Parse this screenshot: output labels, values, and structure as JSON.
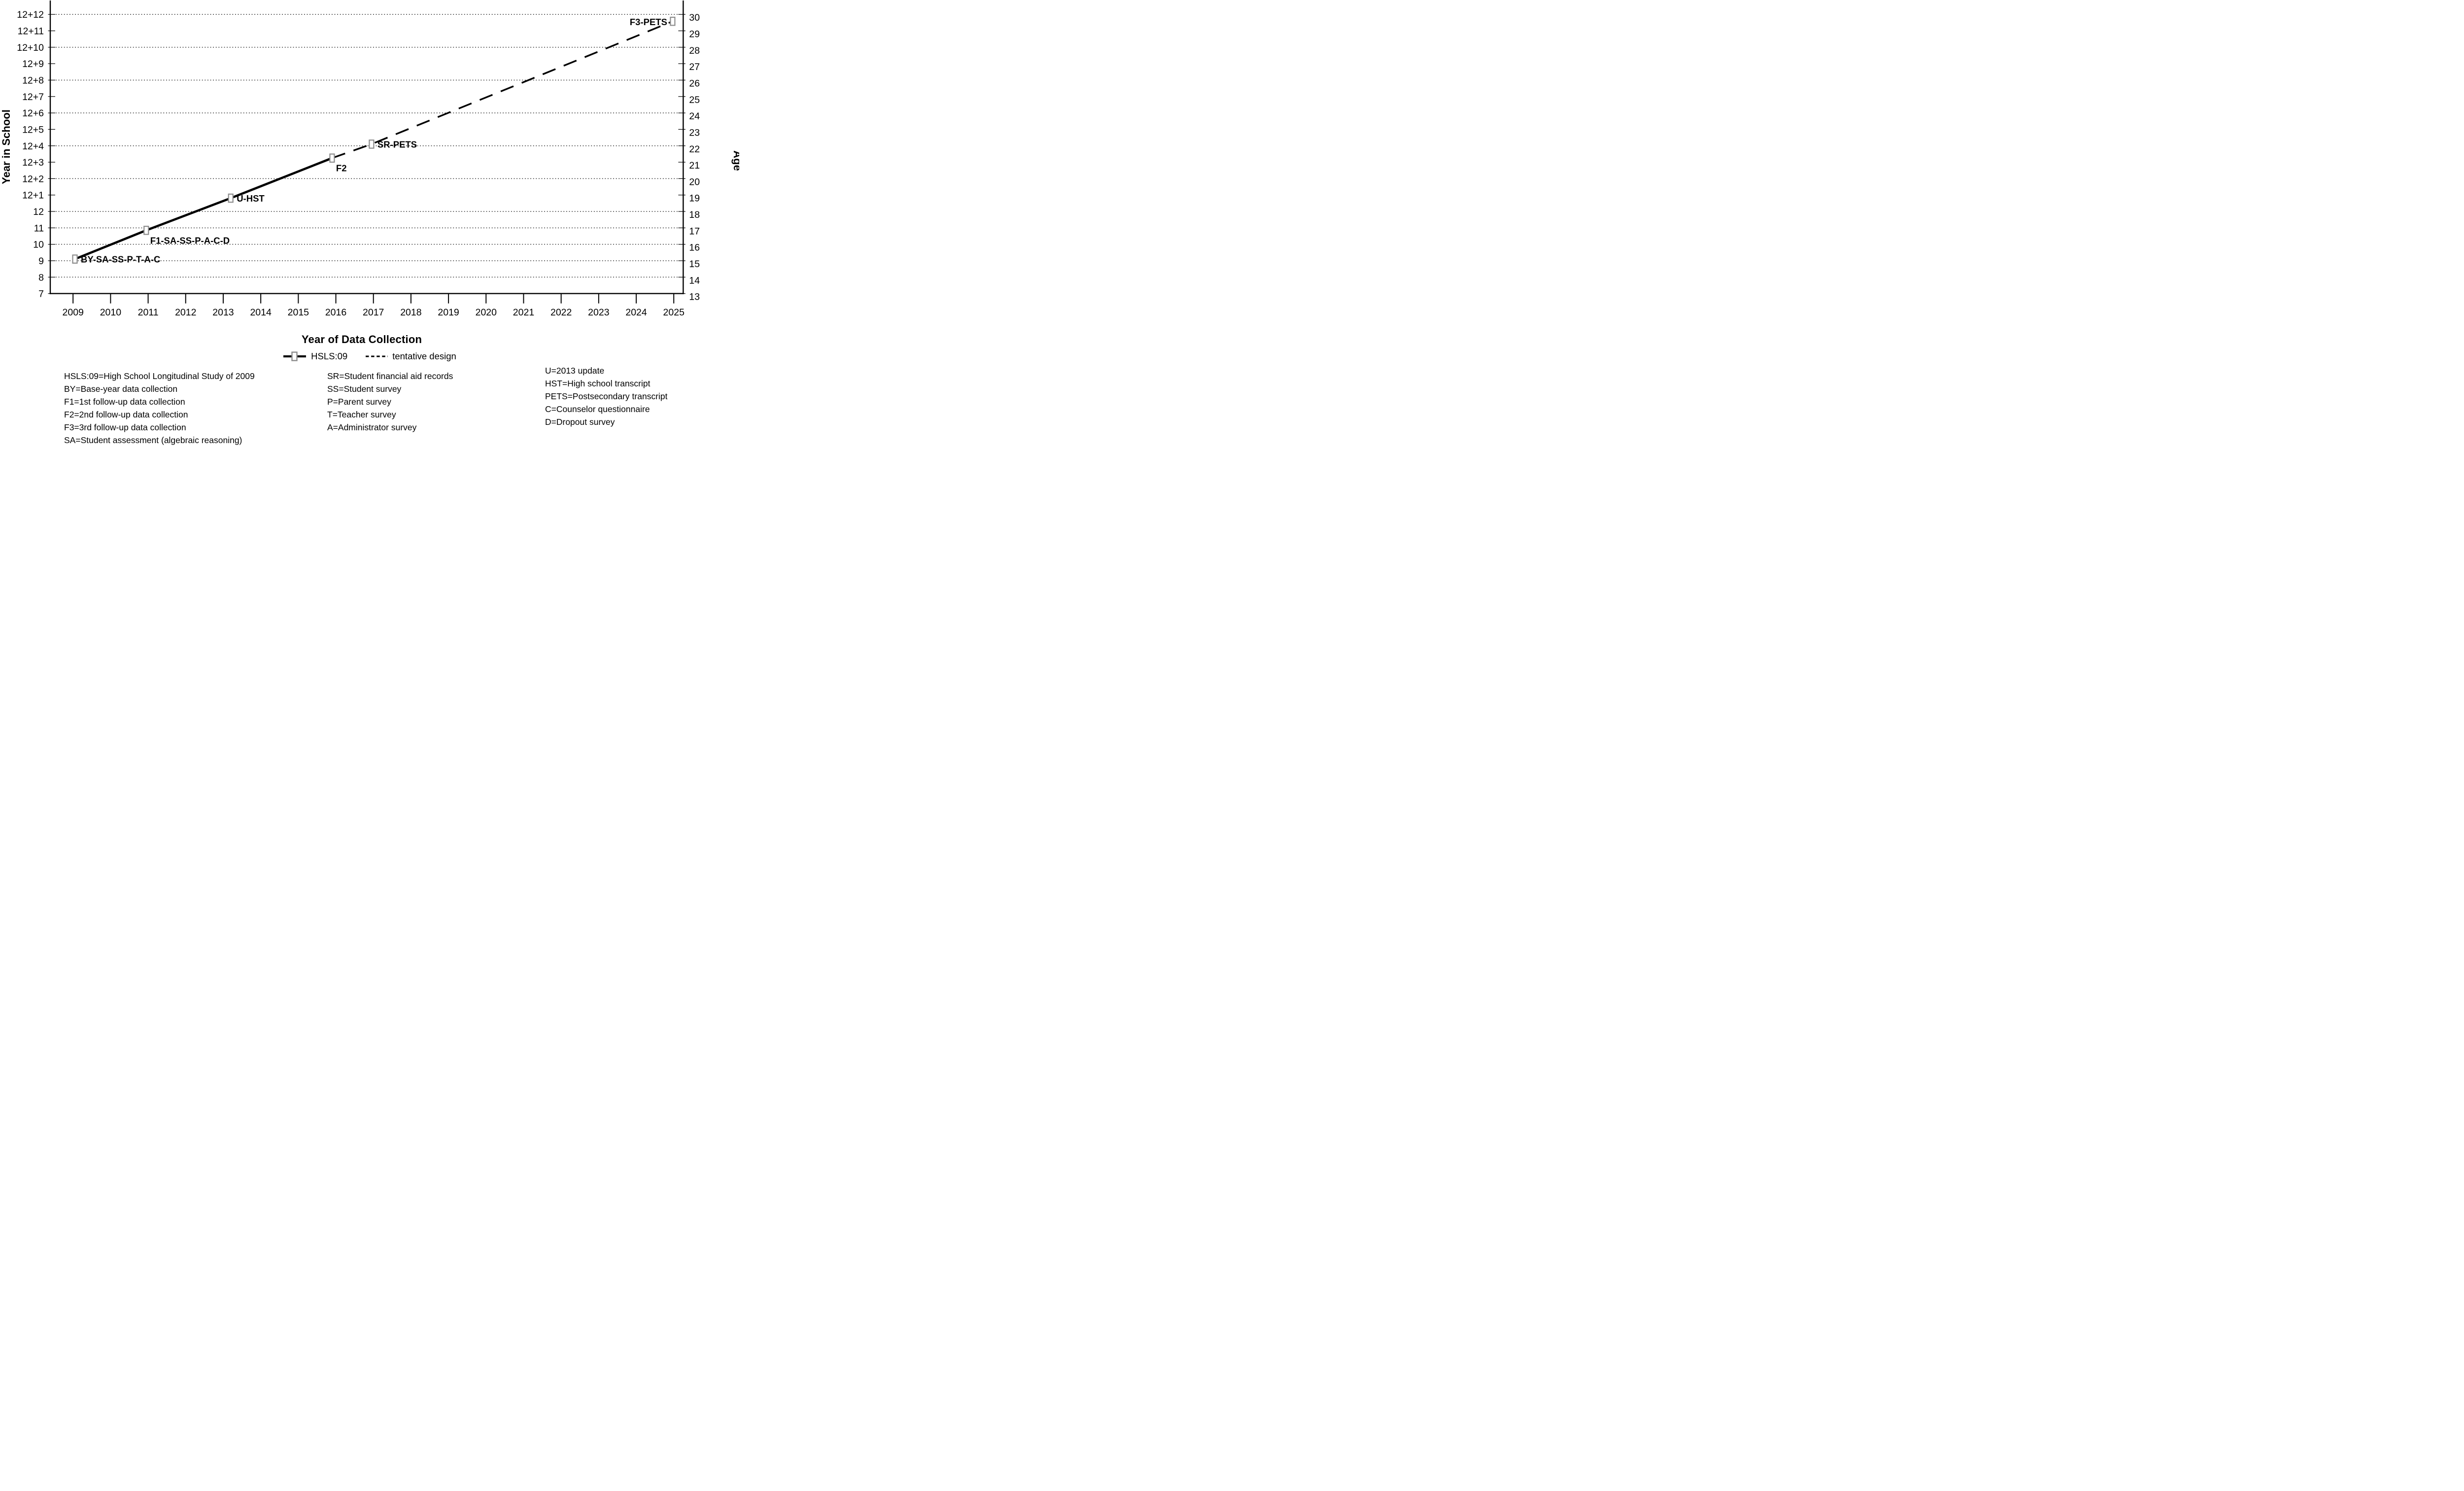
{
  "chart_data": {
    "type": "line",
    "title": "",
    "xlabel": "Year of Data Collection",
    "ylabel_left": "Year in School",
    "ylabel_right": "Age",
    "x_ticks": [
      2009,
      2010,
      2011,
      2012,
      2013,
      2014,
      2015,
      2016,
      2017,
      2018,
      2019,
      2020,
      2021,
      2022,
      2023,
      2024,
      2025
    ],
    "left_axis_tick_labels": [
      "7",
      "8",
      "9",
      "10",
      "11",
      "12",
      "12+1",
      "12+2",
      "12+3",
      "12+4",
      "12+5",
      "12+6",
      "12+7",
      "12+8",
      "12+9",
      "12+10",
      "12+11",
      "12+12"
    ],
    "left_axis_tick_values": [
      7,
      8,
      9,
      10,
      11,
      12,
      13,
      14,
      15,
      16,
      17,
      18,
      19,
      20,
      21,
      22,
      23,
      24
    ],
    "right_axis_tick_labels": [
      "13",
      "14",
      "15",
      "16",
      "17",
      "18",
      "19",
      "20",
      "21",
      "22",
      "23",
      "24",
      "25",
      "26",
      "27",
      "28",
      "29",
      "30"
    ],
    "gridline_values": [
      8,
      9,
      10,
      11,
      12,
      14,
      16,
      18,
      20,
      22,
      24
    ],
    "grid_style": "dotted",
    "marker": "open-square",
    "series": [
      {
        "name": "HSLS:09",
        "style": "solid",
        "points": [
          {
            "x": 2009.05,
            "year_in_school": 9.1,
            "age": 15.1,
            "label": "BY-SA-SS-P-T-A-C",
            "label_pos": "right",
            "marker": true
          },
          {
            "x": 2010.95,
            "year_in_school": 10.85,
            "age": 16.9,
            "label": "F1-SA-SS-P-A-C-D",
            "label_pos": "below",
            "marker": true
          },
          {
            "x": 2013.2,
            "year_in_school": 12.81,
            "age": 18.8,
            "label": "U-HST",
            "label_pos": "right",
            "marker": true
          },
          {
            "x": 2015.9,
            "year_in_school": 15.25,
            "age": 21.3,
            "label": "F2",
            "label_pos": "below",
            "marker": true
          }
        ]
      },
      {
        "name": "tentative design",
        "style": "dashed",
        "points": [
          {
            "x": 2015.9,
            "year_in_school": 15.25,
            "age": 21.3,
            "label": null,
            "label_pos": null,
            "marker": false
          },
          {
            "x": 2016.95,
            "year_in_school": 16.1,
            "age": 22.1,
            "label": "SR-PETS",
            "label_pos": "right",
            "marker": true
          },
          {
            "x": 2024.97,
            "year_in_school": 23.58,
            "age": 29.6,
            "label": "F3-PETS",
            "label_pos": "left",
            "marker": true
          }
        ]
      }
    ]
  },
  "legend": {
    "items": [
      {
        "label": "HSLS:09",
        "swatch": "solid-line-with-square-marker"
      },
      {
        "label": "tentative design",
        "swatch": "dashed-line"
      }
    ]
  },
  "key": {
    "columns": [
      [
        "HSLS:09=High School Longitudinal Study of 2009",
        "BY=Base-year data collection",
        "F1=1st follow-up data collection",
        "F2=2nd follow-up data collection",
        "F3=3rd follow-up data collection",
        "SA=Student assessment (algebraic reasoning)"
      ],
      [
        "SR=Student financial aid records",
        "SS=Student survey",
        "P=Parent survey",
        "T=Teacher survey",
        "A=Administrator survey"
      ],
      [
        "U=2013 update",
        "HST=High school transcript",
        "PETS=Postsecondary transcript",
        "C=Counselor questionnaire",
        "D=Dropout survey"
      ]
    ]
  },
  "colors": {
    "line": "#000000",
    "marker_stroke": "#8c8c8c",
    "marker_fill": "#ffffff",
    "grid": "#2a2a2a",
    "text": "#000000"
  }
}
